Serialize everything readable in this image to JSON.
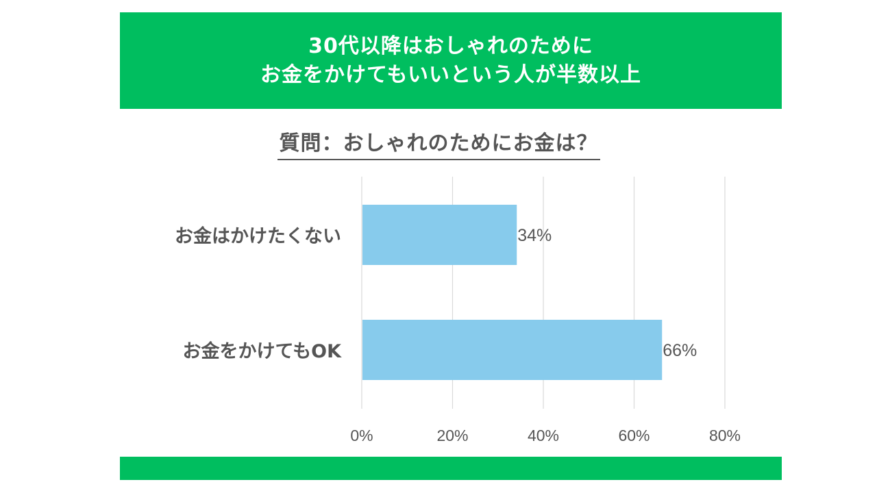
{
  "header": {
    "line1": "30代以降はおしゃれのために",
    "line2": "お金をかけてもいいという人が半数以上"
  },
  "question": "質問：おしゃれのためにお金は？",
  "colors": {
    "banner": "#00be5f",
    "bar": "#87cbec",
    "text": "#555555",
    "grid": "#d9d9d9"
  },
  "chart_data": {
    "type": "bar",
    "orientation": "horizontal",
    "categories": [
      "お金はかけたくない",
      "お金をかけてもOK"
    ],
    "values": [
      34,
      66
    ],
    "value_labels": [
      "34%",
      "66%"
    ],
    "xlim": [
      0,
      80
    ],
    "xticks": [
      0,
      20,
      40,
      60,
      80
    ],
    "xtick_labels": [
      "0%",
      "20%",
      "40%",
      "60%",
      "80%"
    ],
    "grid": true
  }
}
